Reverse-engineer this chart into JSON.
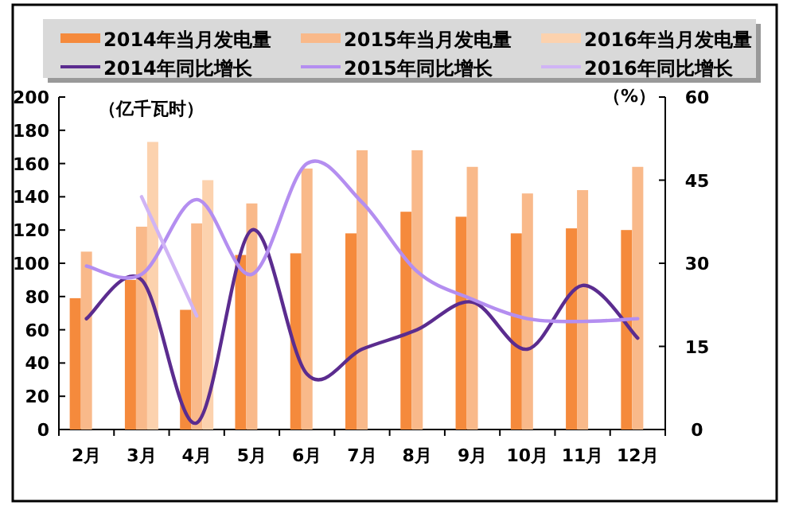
{
  "chart_data": {
    "type": "bar",
    "categories": [
      "2月",
      "3月",
      "4月",
      "5月",
      "6月",
      "7月",
      "8月",
      "9月",
      "10月",
      "11月",
      "12月"
    ],
    "series": [
      {
        "name": "2014年当月发电量",
        "color": "#f58a3c",
        "values": [
          79,
          90,
          72,
          105,
          106,
          118,
          131,
          128,
          118,
          121,
          120
        ]
      },
      {
        "name": "2015年当月发电量",
        "color": "#f9b98a",
        "values": [
          107,
          122,
          124,
          136,
          157,
          168,
          168,
          158,
          142,
          144,
          158
        ]
      },
      {
        "name": "2016年当月发电量",
        "color": "#fcd2ae",
        "values": [
          null,
          173,
          150,
          null,
          null,
          null,
          null,
          null,
          null,
          null,
          null
        ]
      },
      {
        "name": "2014年同比增长",
        "type": "line",
        "axis": "y2",
        "color": "#5b2c8f",
        "values": [
          20,
          27,
          1.2,
          36,
          10,
          14.5,
          18,
          23,
          14.5,
          26,
          16.5
        ]
      },
      {
        "name": "2015年同比增长",
        "type": "line",
        "axis": "y2",
        "color": "#b48ef0",
        "values": [
          29.5,
          28,
          41.5,
          28,
          48,
          41,
          28.5,
          23.5,
          20,
          19.5,
          20
        ]
      },
      {
        "name": "2016年同比增长",
        "type": "line",
        "axis": "y2",
        "color": "#d0b4f5",
        "values": [
          null,
          42,
          20.5,
          null,
          null,
          null,
          null,
          null,
          null,
          null,
          null
        ]
      }
    ],
    "ylim": [
      0,
      200
    ],
    "yticks": [
      0,
      20,
      40,
      60,
      80,
      100,
      120,
      140,
      160,
      180,
      200
    ],
    "y2lim": [
      0,
      60
    ],
    "y2ticks": [
      0,
      15,
      30,
      45,
      60
    ],
    "annotations": [
      "（亿千瓦时）",
      "（%）"
    ],
    "legend": "top",
    "grid": false
  }
}
